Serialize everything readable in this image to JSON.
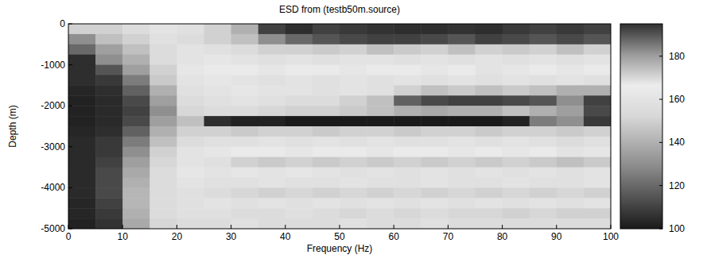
{
  "chart_data": {
    "type": "heatmap",
    "title": "ESD from (testb50m.source)",
    "x_label": "Frequency (Hz)",
    "y_label": "Depth (m)",
    "x": [
      2.5,
      7.5,
      12.5,
      17.5,
      22.5,
      27.5,
      32.5,
      37.5,
      42.5,
      47.5,
      52.5,
      57.5,
      62.5,
      67.5,
      72.5,
      77.5,
      82.5,
      87.5,
      92.5,
      97.5
    ],
    "y": [
      -125,
      -375,
      -625,
      -875,
      -1125,
      -1375,
      -1625,
      -1875,
      -2125,
      -2375,
      -2625,
      -2875,
      -3125,
      -3375,
      -3625,
      -3875,
      -4125,
      -4375,
      -4625,
      -4875
    ],
    "z": [
      [
        150,
        150,
        155,
        160,
        158,
        150,
        140,
        110,
        105,
        110,
        108,
        106,
        105,
        105,
        106,
        105,
        108,
        110,
        108,
        110
      ],
      [
        130,
        145,
        150,
        158,
        155,
        150,
        145,
        130,
        120,
        115,
        112,
        110,
        110,
        112,
        115,
        110,
        112,
        115,
        112,
        115
      ],
      [
        120,
        135,
        145,
        155,
        160,
        158,
        155,
        150,
        150,
        148,
        150,
        145,
        148,
        150,
        145,
        150,
        148,
        150,
        145,
        150
      ],
      [
        105,
        130,
        140,
        155,
        160,
        162,
        160,
        158,
        160,
        158,
        160,
        160,
        158,
        160,
        158,
        160,
        158,
        160,
        158,
        160
      ],
      [
        105,
        115,
        135,
        150,
        162,
        165,
        165,
        162,
        165,
        165,
        162,
        165,
        165,
        162,
        165,
        160,
        162,
        165,
        162,
        165
      ],
      [
        105,
        108,
        125,
        148,
        160,
        162,
        160,
        158,
        160,
        158,
        160,
        158,
        160,
        158,
        160,
        158,
        160,
        158,
        160,
        158
      ],
      [
        103,
        105,
        118,
        140,
        158,
        160,
        162,
        160,
        160,
        158,
        160,
        158,
        150,
        145,
        148,
        145,
        148,
        145,
        140,
        140
      ],
      [
        102,
        104,
        112,
        135,
        155,
        158,
        160,
        158,
        155,
        155,
        150,
        145,
        118,
        112,
        110,
        110,
        112,
        115,
        130,
        110
      ],
      [
        102,
        104,
        110,
        130,
        152,
        155,
        155,
        152,
        150,
        150,
        148,
        145,
        140,
        138,
        140,
        140,
        145,
        140,
        135,
        112
      ],
      [
        102,
        104,
        112,
        135,
        145,
        105,
        102,
        102,
        100,
        100,
        100,
        100,
        100,
        100,
        100,
        100,
        102,
        125,
        130,
        108
      ],
      [
        103,
        105,
        118,
        140,
        150,
        150,
        148,
        150,
        150,
        148,
        150,
        150,
        148,
        150,
        150,
        148,
        150,
        150,
        148,
        150
      ],
      [
        104,
        108,
        125,
        145,
        155,
        158,
        158,
        160,
        158,
        160,
        158,
        160,
        158,
        158,
        160,
        158,
        160,
        158,
        155,
        158
      ],
      [
        104,
        108,
        130,
        150,
        160,
        162,
        165,
        165,
        162,
        165,
        165,
        162,
        165,
        165,
        162,
        165,
        162,
        165,
        160,
        162
      ],
      [
        104,
        110,
        135,
        152,
        160,
        158,
        150,
        148,
        150,
        148,
        150,
        148,
        150,
        148,
        150,
        148,
        150,
        148,
        145,
        148
      ],
      [
        104,
        112,
        138,
        155,
        162,
        160,
        162,
        160,
        162,
        160,
        158,
        160,
        158,
        160,
        158,
        160,
        158,
        160,
        158,
        160
      ],
      [
        104,
        112,
        140,
        155,
        160,
        158,
        158,
        160,
        158,
        158,
        160,
        158,
        158,
        160,
        158,
        158,
        160,
        158,
        158,
        160
      ],
      [
        104,
        112,
        142,
        155,
        158,
        155,
        152,
        150,
        152,
        150,
        152,
        150,
        152,
        150,
        152,
        150,
        152,
        150,
        152,
        150
      ],
      [
        103,
        110,
        142,
        155,
        158,
        160,
        158,
        160,
        158,
        160,
        158,
        160,
        158,
        160,
        158,
        160,
        158,
        160,
        158,
        160
      ],
      [
        103,
        108,
        140,
        155,
        158,
        158,
        155,
        155,
        158,
        155,
        152,
        155,
        152,
        155,
        152,
        152,
        150,
        152,
        150,
        150
      ],
      [
        102,
        106,
        138,
        152,
        155,
        155,
        158,
        155,
        155,
        155,
        158,
        155,
        155,
        158,
        155,
        155,
        155,
        155,
        155,
        155
      ]
    ],
    "xlim": [
      0,
      100
    ],
    "ylim": [
      -5000,
      0
    ],
    "xticks": [
      0,
      10,
      20,
      30,
      40,
      50,
      60,
      70,
      80,
      90,
      100
    ],
    "yticks": [
      -5000,
      -4000,
      -3000,
      -2000,
      -1000,
      0
    ],
    "colorbar_range": [
      100,
      195
    ],
    "colorbar_ticks": [
      100,
      120,
      140,
      160,
      180
    ]
  }
}
